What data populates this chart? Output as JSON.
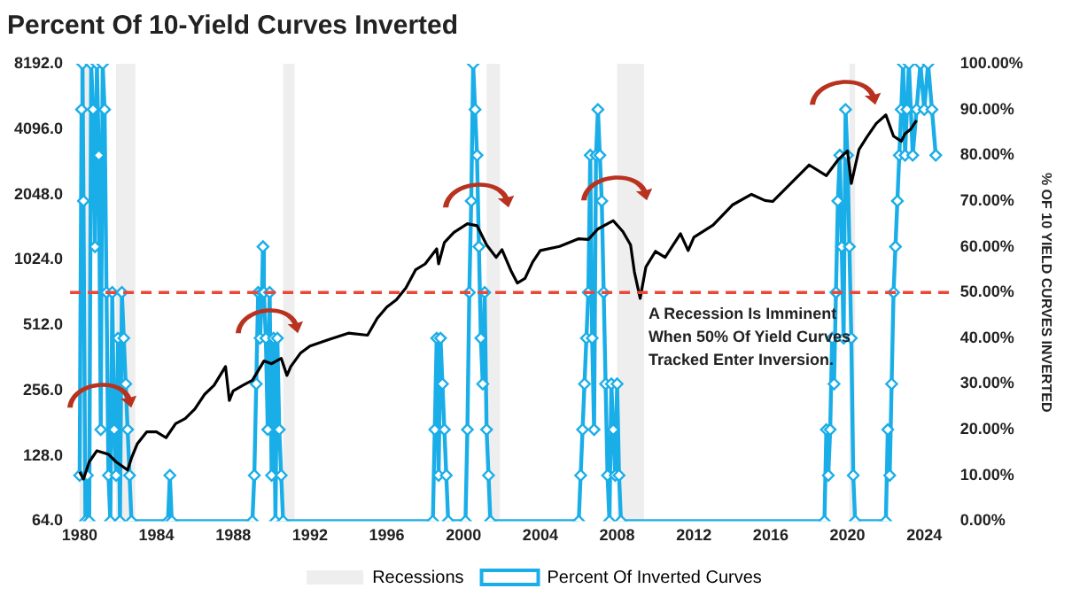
{
  "chart_data": {
    "type": "line",
    "title": "Percent Of 10-Yield Curves Inverted",
    "y2label": "% OF 10 YIELD CURVES INVERTED",
    "xlim": [
      1979.5,
      2025.5
    ],
    "xticks": [
      1980,
      1984,
      1988,
      1992,
      1996,
      2000,
      2004,
      2008,
      2012,
      2016,
      2020,
      2024
    ],
    "ylim": [
      64,
      8192
    ],
    "yticks": [
      {
        "value": 64,
        "label": "64.0"
      },
      {
        "value": 128,
        "label": "128.0"
      },
      {
        "value": 256,
        "label": "256.0"
      },
      {
        "value": 512,
        "label": "512.0"
      },
      {
        "value": 1024,
        "label": "1024.0"
      },
      {
        "value": 2048,
        "label": "2048.0"
      },
      {
        "value": 4096,
        "label": "4096.0"
      },
      {
        "value": 8192,
        "label": "8192.0"
      }
    ],
    "y2lim": [
      0,
      100
    ],
    "y2ticks": [
      {
        "value": 0,
        "label": "0.00%"
      },
      {
        "value": 10,
        "label": "10.00%"
      },
      {
        "value": 20,
        "label": "20.00%"
      },
      {
        "value": 30,
        "label": "30.00%"
      },
      {
        "value": 40,
        "label": "40.00%"
      },
      {
        "value": 50,
        "label": "50.00%"
      },
      {
        "value": 60,
        "label": "60.00%"
      },
      {
        "value": 70,
        "label": "70.00%"
      },
      {
        "value": 80,
        "label": "80.00%"
      },
      {
        "value": 90,
        "label": "90.00%"
      },
      {
        "value": 100,
        "label": "100.00%"
      }
    ],
    "log": "y",
    "grid": false,
    "legend": "bottom",
    "bands": [
      {
        "axis": "x",
        "from": 1980.0,
        "to": 1980.5,
        "label": "Recessions",
        "color": "#eeeeee"
      },
      {
        "axis": "x",
        "from": 1981.9,
        "to": 1982.9,
        "color": "#eeeeee"
      },
      {
        "axis": "x",
        "from": 1990.6,
        "to": 1991.2,
        "color": "#eeeeee"
      },
      {
        "axis": "x",
        "from": 2001.2,
        "to": 2001.9,
        "color": "#eeeeee"
      },
      {
        "axis": "x",
        "from": 2008.0,
        "to": 2009.4,
        "color": "#eeeeee"
      },
      {
        "axis": "x",
        "from": 2020.1,
        "to": 2020.4,
        "color": "#eeeeee"
      }
    ],
    "ref_lines": [
      {
        "axis": "y2",
        "value": 50,
        "label": "A Recession Is Imminent\nWhen 50% Of Yield Curves\nTracked Enter Inversion.",
        "color": "#e8473a",
        "line_style": "dashed"
      }
    ],
    "series": [
      {
        "color": "#000000",
        "marker": "none",
        "x": [
          1980.0,
          1980.2,
          1980.5,
          1980.9,
          1981.5,
          1981.9,
          1982.5,
          1982.7,
          1983.0,
          1983.5,
          1984.0,
          1984.5,
          1985.0,
          1985.5,
          1986.0,
          1986.5,
          1987.0,
          1987.6,
          1987.8,
          1988.0,
          1988.5,
          1989.0,
          1989.6,
          1990.0,
          1990.5,
          1990.8,
          1991.0,
          1991.5,
          1992.0,
          1993.0,
          1994.0,
          1995.0,
          1995.5,
          1996.0,
          1996.5,
          1997.0,
          1997.5,
          1998.0,
          1998.6,
          1998.7,
          1999.0,
          1999.5,
          2000.2,
          2000.7,
          2001.2,
          2001.7,
          2002.0,
          2002.5,
          2002.8,
          2003.2,
          2003.6,
          2004.0,
          2005.0,
          2006.0,
          2006.5,
          2007.0,
          2007.8,
          2008.3,
          2008.7,
          2008.9,
          2009.2,
          2009.5,
          2010.0,
          2010.5,
          2011.3,
          2011.7,
          2012.0,
          2013.0,
          2014.0,
          2015.0,
          2015.7,
          2016.1,
          2017.0,
          2018.0,
          2018.9,
          2019.5,
          2020.0,
          2020.2,
          2020.6,
          2021.0,
          2021.5,
          2022.0,
          2022.4,
          2022.8,
          2023.0,
          2023.3,
          2023.6
        ],
        "values": [
          108,
          100,
          120,
          135,
          130,
          120,
          110,
          125,
          145,
          165,
          165,
          155,
          180,
          190,
          210,
          245,
          270,
          330,
          230,
          255,
          270,
          285,
          350,
          340,
          360,
          300,
          330,
          380,
          410,
          440,
          470,
          460,
          550,
          620,
          670,
          760,
          920,
          980,
          1150,
          980,
          1230,
          1370,
          1500,
          1470,
          1200,
          1050,
          1140,
          900,
          800,
          840,
          1000,
          1130,
          1180,
          1280,
          1270,
          1420,
          1550,
          1380,
          1200,
          900,
          680,
          950,
          1120,
          1050,
          1350,
          1130,
          1300,
          1480,
          1830,
          2050,
          1920,
          1900,
          2280,
          2800,
          2500,
          2950,
          3250,
          2300,
          3300,
          3750,
          4350,
          4760,
          3800,
          3600,
          3900,
          4100,
          4500
        ]
      },
      {
        "name": "Percent Of Inverted Curves",
        "color": "#1aaee8",
        "axis": "y2",
        "marker": "diamond",
        "x": [
          1980.0,
          1980.1,
          1980.15,
          1980.2,
          1980.3,
          1980.4,
          1980.5,
          1980.6,
          1980.7,
          1980.8,
          1980.9,
          1981.0,
          1981.1,
          1981.2,
          1981.3,
          1981.4,
          1981.5,
          1981.6,
          1981.7,
          1981.8,
          1981.9,
          1982.0,
          1982.1,
          1982.2,
          1982.3,
          1982.4,
          1982.5,
          1982.6,
          1982.7,
          1984.6,
          1984.7,
          1984.8,
          1989.0,
          1989.1,
          1989.2,
          1989.3,
          1989.4,
          1989.5,
          1989.55,
          1989.6,
          1989.7,
          1989.8,
          1989.9,
          1990.0,
          1990.1,
          1990.2,
          1990.3,
          1990.4,
          1990.5,
          1990.6,
          1998.4,
          1998.5,
          1998.6,
          1998.7,
          1998.8,
          1998.9,
          1999.0,
          1999.1,
          1999.2,
          2000.1,
          2000.2,
          2000.3,
          2000.4,
          2000.5,
          2000.6,
          2000.7,
          2000.8,
          2000.9,
          2001.0,
          2001.1,
          2001.2,
          2001.3,
          2001.4,
          2006.0,
          2006.1,
          2006.2,
          2006.3,
          2006.4,
          2006.5,
          2006.6,
          2006.7,
          2006.8,
          2006.9,
          2007.0,
          2007.1,
          2007.2,
          2007.3,
          2007.4,
          2007.5,
          2007.6,
          2007.7,
          2007.8,
          2007.9,
          2008.0,
          2008.1,
          2008.2,
          2018.8,
          2018.9,
          2019.0,
          2019.1,
          2019.2,
          2019.3,
          2019.4,
          2019.5,
          2019.6,
          2019.7,
          2019.8,
          2019.9,
          2020.0,
          2020.1,
          2020.2,
          2020.3,
          2020.4,
          2022.0,
          2022.1,
          2022.2,
          2022.3,
          2022.4,
          2022.5,
          2022.6,
          2022.7,
          2022.8,
          2022.9,
          2023.0,
          2023.1,
          2023.2,
          2023.4,
          2023.6,
          2023.8,
          2024.0,
          2024.2,
          2024.4,
          2024.6
        ],
        "values": [
          10,
          90,
          100,
          70,
          0,
          10,
          0,
          100,
          90,
          60,
          100,
          80,
          20,
          100,
          90,
          50,
          10,
          0,
          50,
          20,
          10,
          40,
          0,
          50,
          40,
          30,
          20,
          10,
          0,
          0,
          10,
          0,
          0,
          10,
          30,
          50,
          40,
          50,
          60,
          50,
          40,
          20,
          50,
          10,
          40,
          0,
          40,
          20,
          10,
          0,
          0,
          20,
          40,
          10,
          40,
          30,
          20,
          10,
          0,
          0,
          20,
          50,
          70,
          100,
          90,
          80,
          60,
          40,
          30,
          50,
          20,
          10,
          0,
          0,
          10,
          20,
          30,
          40,
          50,
          80,
          40,
          20,
          80,
          90,
          80,
          70,
          50,
          30,
          10,
          0,
          30,
          20,
          10,
          30,
          10,
          0,
          0,
          20,
          10,
          20,
          40,
          30,
          50,
          70,
          80,
          60,
          40,
          90,
          80,
          60,
          40,
          10,
          0,
          0,
          20,
          10,
          30,
          50,
          60,
          70,
          80,
          90,
          100,
          80,
          90,
          100,
          80,
          90,
          100,
          90,
          100,
          90,
          80
        ]
      }
    ]
  }
}
